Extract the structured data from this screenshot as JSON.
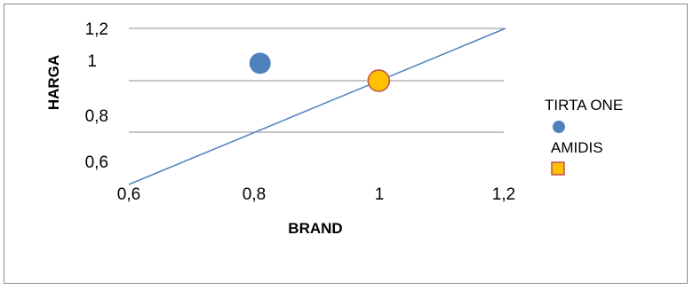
{
  "chart_data": {
    "type": "scatter",
    "title": "",
    "xlabel": "BRAND",
    "ylabel": "HARGA",
    "xlim": [
      0.6,
      1.2
    ],
    "ylim": [
      0.6,
      1.2
    ],
    "x_ticks": [
      "0,6",
      "0,8",
      "1",
      "1,2"
    ],
    "y_ticks": [
      "0,6",
      "0,8",
      "1",
      "1,2"
    ],
    "grid": true,
    "legend_position": "right",
    "series": [
      {
        "name": "TIRTA ONE",
        "x": [
          0.81
        ],
        "y": [
          1.0
        ],
        "marker": "circle",
        "color": "#4f81bd"
      },
      {
        "name": "AMIDIS",
        "x": [
          1.0
        ],
        "y": [
          0.9
        ],
        "marker": "circle",
        "legend_marker": "square",
        "color": "#ffc000",
        "edge_color": "#c0504d"
      }
    ],
    "reference_line": {
      "x": [
        0.6,
        1.2
      ],
      "y": [
        0.6,
        1.2
      ],
      "color": "#4f81bd"
    }
  }
}
